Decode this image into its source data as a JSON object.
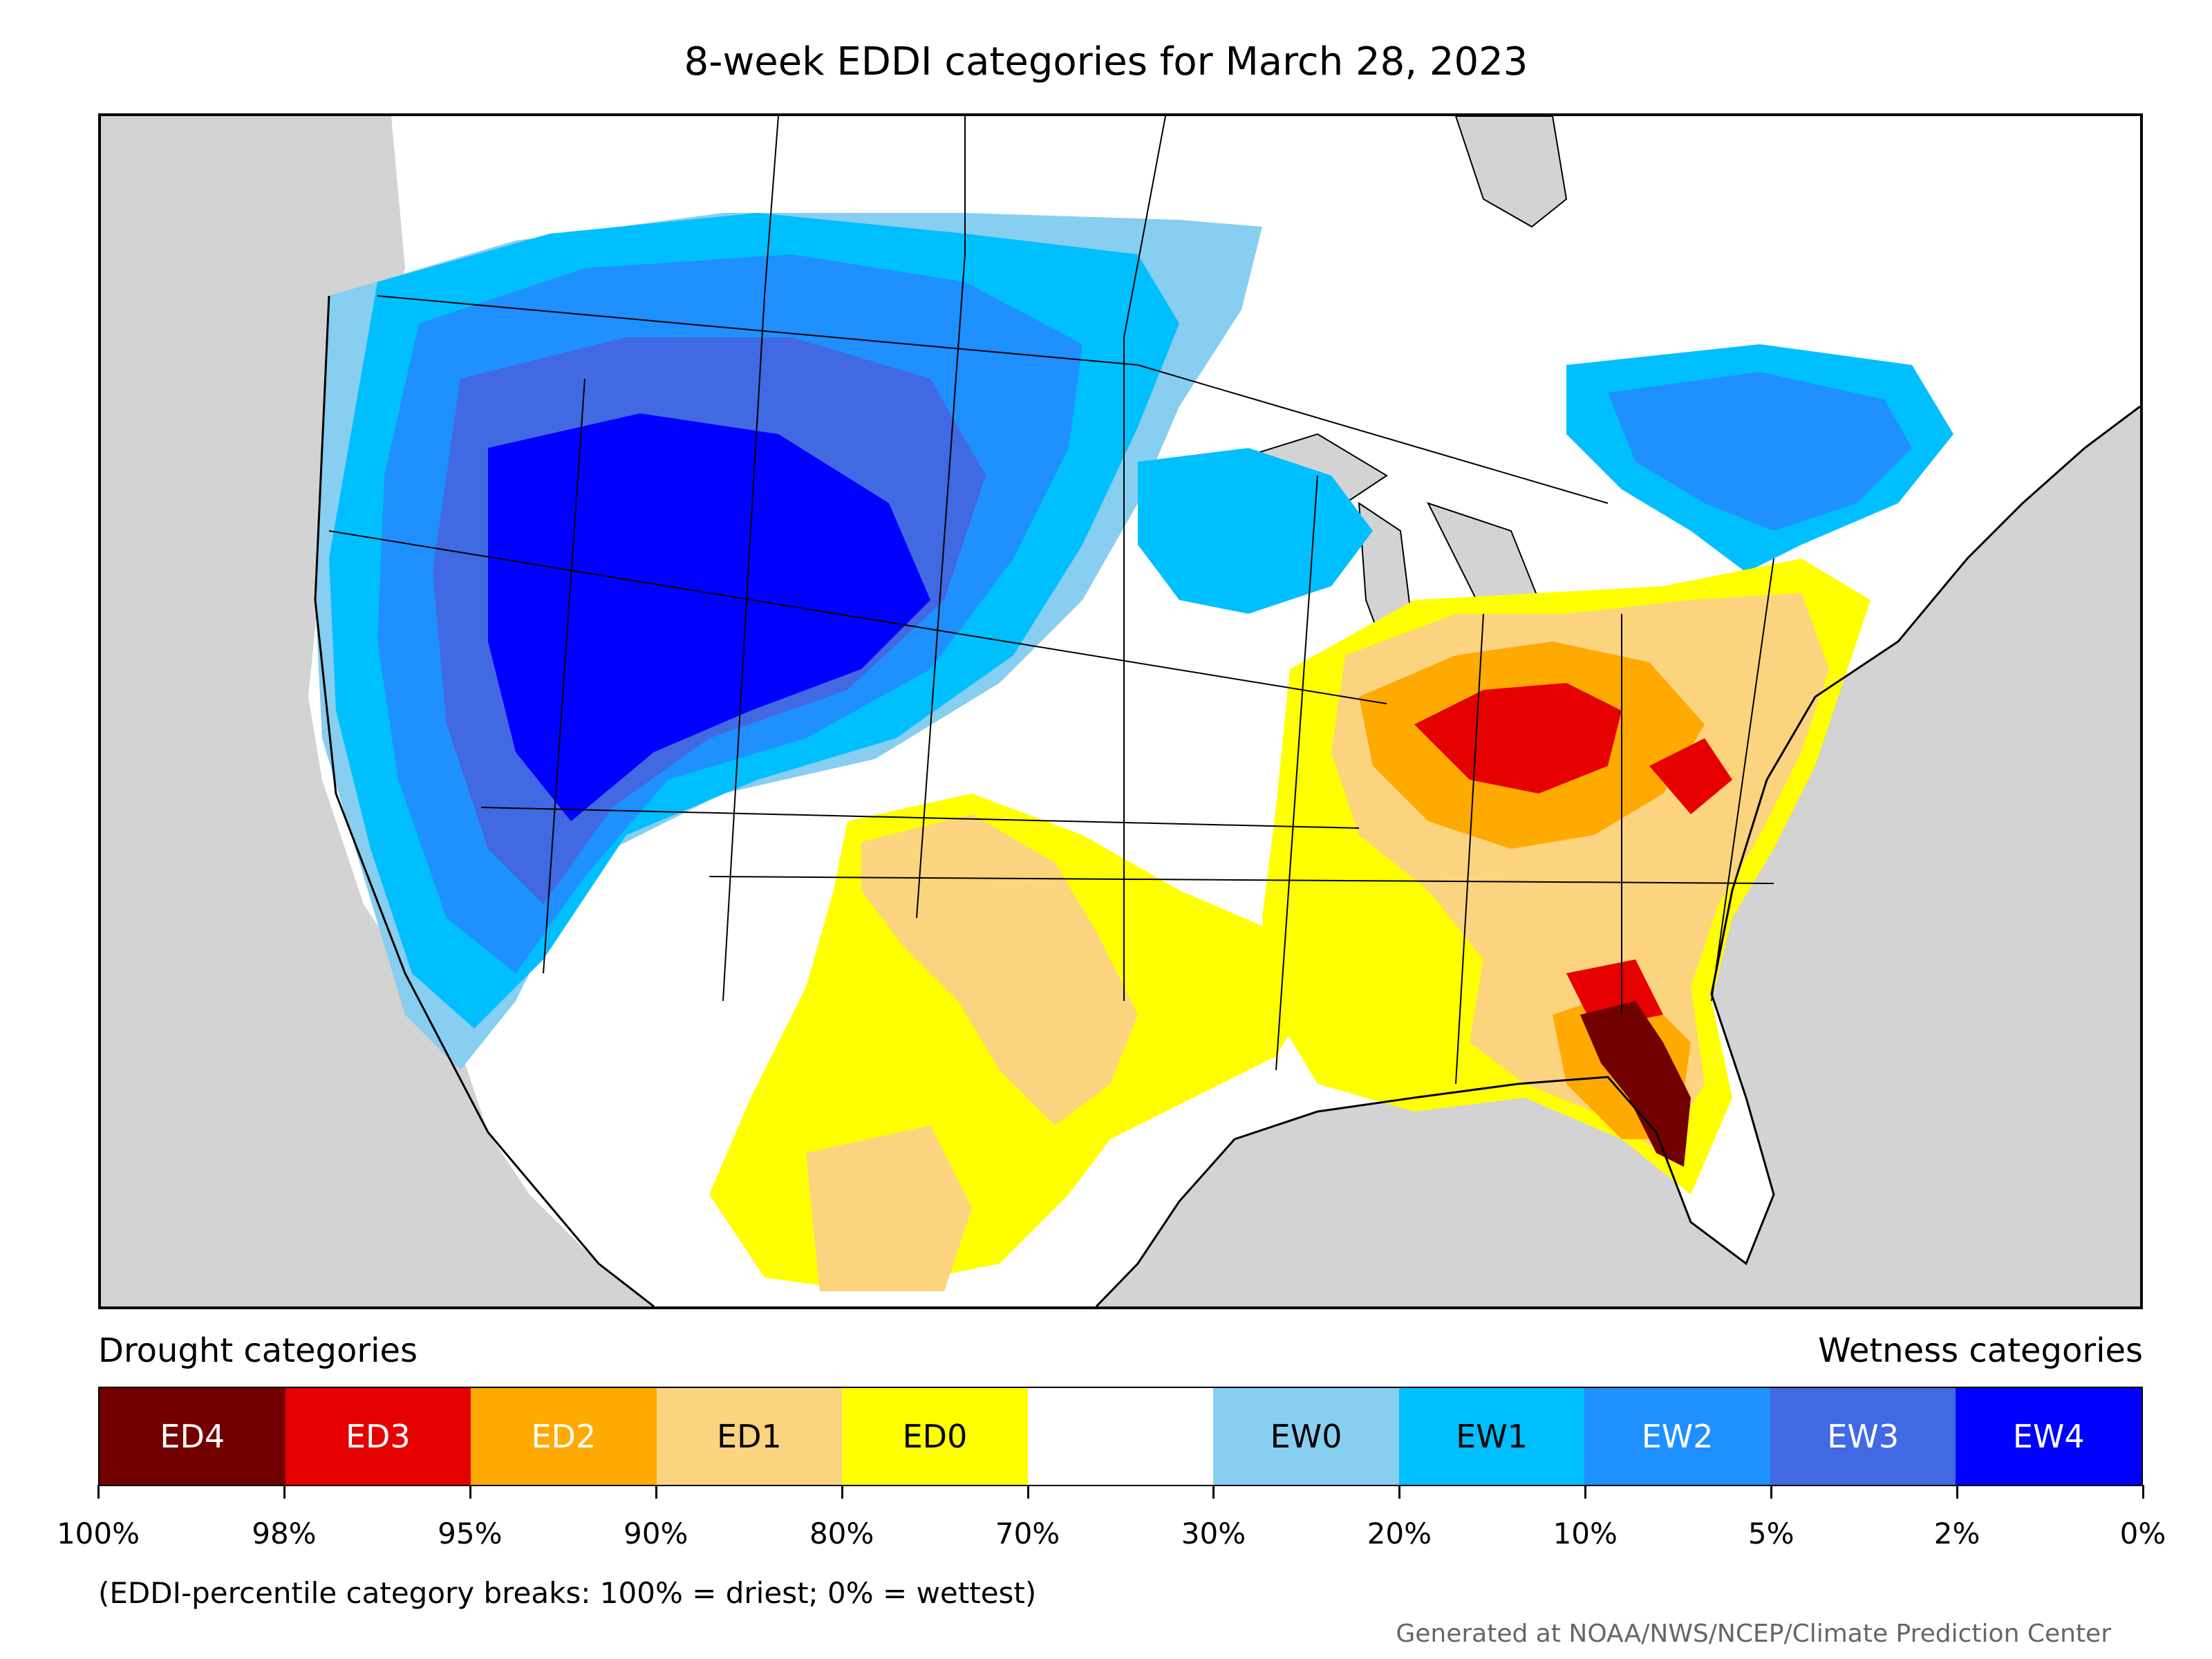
{
  "title": "8-week EDDI categories for March 28, 2023",
  "map": {
    "colors": {
      "background": "#d3d3d3",
      "ED4": "#730000",
      "ED3": "#e60000",
      "ED2": "#ffaa00",
      "ED1": "#fcd37f",
      "ED0": "#ffff00",
      "neutral": "#ffffff",
      "EW0": "#87cef0",
      "EW1": "#00bfff",
      "EW2": "#1e90ff",
      "EW3": "#4169e1",
      "EW4": "#0000ff"
    }
  },
  "legend": {
    "drought_heading": "Drought categories",
    "wetness_heading": "Wetness categories",
    "categories": [
      {
        "label": "ED4",
        "color": "#730000",
        "text_color": "#ffffff"
      },
      {
        "label": "ED3",
        "color": "#e60000",
        "text_color": "#ffffff"
      },
      {
        "label": "ED2",
        "color": "#ffaa00",
        "text_color": "#ffffff"
      },
      {
        "label": "ED1",
        "color": "#fcd37f",
        "text_color": "#000000"
      },
      {
        "label": "ED0",
        "color": "#ffff00",
        "text_color": "#000000"
      },
      {
        "label": "",
        "color": "#ffffff",
        "text_color": "#000000"
      },
      {
        "label": "EW0",
        "color": "#87cef0",
        "text_color": "#000000"
      },
      {
        "label": "EW1",
        "color": "#00bfff",
        "text_color": "#000000"
      },
      {
        "label": "EW2",
        "color": "#1e90ff",
        "text_color": "#ffffff"
      },
      {
        "label": "EW3",
        "color": "#4169e1",
        "text_color": "#ffffff"
      },
      {
        "label": "EW4",
        "color": "#0000ff",
        "text_color": "#ffffff"
      }
    ],
    "breaks": [
      "100%",
      "98%",
      "95%",
      "90%",
      "80%",
      "70%",
      "30%",
      "20%",
      "10%",
      "5%",
      "2%",
      "0%"
    ]
  },
  "note": "(EDDI-percentile category breaks: 100% = driest; 0% = wettest)",
  "credit": "Generated at NOAA/NWS/NCEP/Climate Prediction Center"
}
